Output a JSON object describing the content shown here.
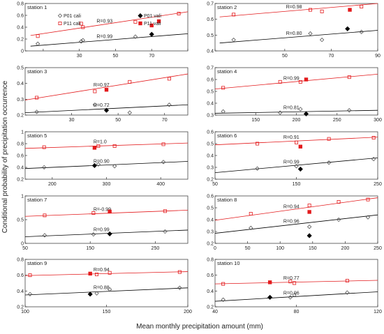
{
  "figure": {
    "ylabel": "Conditional probability of precipitation occurrence",
    "xlabel": "Mean monthly precipitation amount (mm)"
  },
  "colors": {
    "p01": "#000000",
    "p11": "#e31a1c",
    "axis": "#333333",
    "frame": "#444444"
  },
  "legend_labels": {
    "p01_cali": "P01 cali",
    "p11_cali": "P11 cali",
    "p01_vali": "P01 vali",
    "p11_vali": "P11 vali"
  },
  "chart_data": [
    {
      "type": "scatter",
      "title": "station 1",
      "xlim": [
        0,
        90
      ],
      "ylim": [
        0,
        0.8
      ],
      "xticks": [
        10,
        30,
        50,
        70,
        90
      ],
      "yticks": [
        0,
        0.2,
        0.4,
        0.6,
        0.8
      ],
      "xtick_labels": [
        "",
        "30",
        "50",
        "70",
        ""
      ],
      "series": [
        {
          "name": "P01 cali",
          "x": [
            7,
            31,
            32,
            61
          ],
          "y": [
            0.12,
            0.16,
            0.18,
            0.24
          ],
          "fit": [
            [
              3,
              0.08
            ],
            [
              90,
              0.29
            ]
          ],
          "R": "R=0.99"
        },
        {
          "name": "P11 cali",
          "x": [
            7,
            31,
            32,
            61,
            85
          ],
          "y": [
            0.25,
            0.46,
            0.4,
            0.49,
            0.63
          ],
          "fit": [
            [
              3,
              0.26
            ],
            [
              90,
              0.66
            ]
          ],
          "R": "R=0.93"
        },
        {
          "name": "P01 vali",
          "x": [
            70
          ],
          "y": [
            0.28
          ]
        },
        {
          "name": "P11 vali",
          "x": [
            70,
            74
          ],
          "y": [
            0.43,
            0.5
          ]
        }
      ]
    },
    {
      "type": "scatter",
      "title": "station 2",
      "xlim": [
        20,
        90
      ],
      "ylim": [
        0.4,
        0.7
      ],
      "xticks": [
        20,
        50,
        70,
        90
      ],
      "yticks": [
        0.4,
        0.5,
        0.6,
        0.7
      ],
      "xtick_labels": [
        "",
        "50",
        "70",
        "90"
      ],
      "series": [
        {
          "name": "P01 cali",
          "x": [
            28,
            61,
            66,
            83
          ],
          "y": [
            0.47,
            0.51,
            0.47,
            0.52
          ],
          "fit": [
            [
              22,
              0.45
            ],
            [
              90,
              0.53
            ]
          ],
          "R": "R=0.80"
        },
        {
          "name": "P11 cali",
          "x": [
            28,
            61,
            66,
            83
          ],
          "y": [
            0.63,
            0.66,
            0.65,
            0.68
          ],
          "fit": [
            [
              22,
              0.615
            ],
            [
              90,
              0.7
            ]
          ],
          "R": "R=0.98"
        },
        {
          "name": "P01 vali",
          "x": [
            77
          ],
          "y": [
            0.54
          ]
        },
        {
          "name": "P11 vali",
          "x": [
            78
          ],
          "y": [
            0.66
          ]
        }
      ]
    },
    {
      "type": "scatter",
      "title": "station 3",
      "xlim": [
        10,
        80
      ],
      "ylim": [
        0.2,
        0.5
      ],
      "xticks": [
        30,
        50,
        70
      ],
      "yticks": [
        0.2,
        0.3,
        0.4,
        0.5
      ],
      "xtick_labels": [
        "30",
        "50",
        "70"
      ],
      "series": [
        {
          "name": "P01 cali",
          "x": [
            15,
            40,
            55,
            72
          ],
          "y": [
            0.22,
            0.265,
            0.215,
            0.265
          ],
          "fit": [
            [
              10,
              0.215
            ],
            [
              80,
              0.265
            ]
          ],
          "R": "R=0.72"
        },
        {
          "name": "P11 cali",
          "x": [
            15,
            40,
            55,
            72
          ],
          "y": [
            0.31,
            0.35,
            0.41,
            0.43
          ],
          "fit": [
            [
              10,
              0.295
            ],
            [
              80,
              0.46
            ]
          ],
          "R": "R=0.97"
        },
        {
          "name": "P01 vali",
          "x": [
            45
          ],
          "y": [
            0.23
          ]
        },
        {
          "name": "P11 vali",
          "x": [
            45
          ],
          "y": [
            0.36
          ]
        }
      ]
    },
    {
      "type": "scatter",
      "title": "station 4",
      "xlim": [
        100,
        300
      ],
      "ylim": [
        0.3,
        0.7
      ],
      "xticks": [
        100,
        150,
        200,
        250,
        300
      ],
      "yticks": [
        0.3,
        0.4,
        0.5,
        0.6,
        0.7
      ],
      "xtick_labels": [
        "",
        "150",
        "200",
        "250",
        "300"
      ],
      "series": [
        {
          "name": "P01 cali",
          "x": [
            110,
            180,
            205,
            265
          ],
          "y": [
            0.33,
            0.32,
            0.35,
            0.34
          ],
          "fit": [
            [
              100,
              0.315
            ],
            [
              300,
              0.34
            ]
          ],
          "R": "R=0.81"
        },
        {
          "name": "P11 cali",
          "x": [
            110,
            180,
            205,
            265
          ],
          "y": [
            0.53,
            0.58,
            0.58,
            0.62
          ],
          "fit": [
            [
              100,
              0.52
            ],
            [
              300,
              0.645
            ]
          ],
          "R": "R=0.99"
        },
        {
          "name": "P01 vali",
          "x": [
            212
          ],
          "y": [
            0.31
          ]
        },
        {
          "name": "P11 vali",
          "x": [
            212
          ],
          "y": [
            0.6
          ]
        }
      ]
    },
    {
      "type": "scatter",
      "title": "station 5",
      "xlim": [
        150,
        450
      ],
      "ylim": [
        0.2,
        1.0
      ],
      "xticks": [
        200,
        300,
        400
      ],
      "yticks": [
        0.2,
        0.4,
        0.6,
        0.8,
        1.0
      ],
      "xtick_labels": [
        "200",
        "300",
        "400"
      ],
      "series": [
        {
          "name": "P01 cali",
          "x": [
            185,
            285,
            315,
            405
          ],
          "y": [
            0.4,
            0.45,
            0.42,
            0.49
          ],
          "fit": [
            [
              150,
              0.38
            ],
            [
              450,
              0.5
            ]
          ],
          "R": "R=0.90"
        },
        {
          "name": "P11 cali",
          "x": [
            185,
            285,
            315,
            405
          ],
          "y": [
            0.74,
            0.76,
            0.76,
            0.79
          ],
          "fit": [
            [
              150,
              0.72
            ],
            [
              450,
              0.81
            ]
          ],
          "R": "R=1.0"
        },
        {
          "name": "P01 vali",
          "x": [
            278
          ],
          "y": [
            0.43
          ]
        },
        {
          "name": "P11 vali",
          "x": [
            278
          ],
          "y": [
            0.73
          ]
        }
      ]
    },
    {
      "type": "scatter",
      "title": "station 6",
      "xlim": [
        50,
        250
      ],
      "ylim": [
        0.2,
        0.6
      ],
      "xticks": [
        50,
        150,
        250
      ],
      "yticks": [
        0.2,
        0.3,
        0.4,
        0.5,
        0.6
      ],
      "xtick_labels": [
        "50",
        "150",
        "250"
      ],
      "series": [
        {
          "name": "P01 cali",
          "x": [
            102,
            150,
            190,
            245
          ],
          "y": [
            0.29,
            0.31,
            0.34,
            0.37
          ],
          "fit": [
            [
              50,
              0.255
            ],
            [
              250,
              0.38
            ]
          ],
          "R": "R=0.99"
        },
        {
          "name": "P11 cali",
          "x": [
            102,
            150,
            190,
            245
          ],
          "y": [
            0.5,
            0.51,
            0.54,
            0.55
          ],
          "fit": [
            [
              50,
              0.49
            ],
            [
              250,
              0.555
            ]
          ],
          "R": "R=0.91"
        },
        {
          "name": "P01 vali",
          "x": [
            155
          ],
          "y": [
            0.285
          ]
        },
        {
          "name": "P11 vali",
          "x": [
            155
          ],
          "y": [
            0.475
          ]
        }
      ]
    },
    {
      "type": "scatter",
      "title": "station 7",
      "xlim": [
        50,
        300
      ],
      "ylim": [
        0.0,
        1.0
      ],
      "xticks": [
        50,
        150,
        250
      ],
      "yticks": [
        0,
        0.5,
        1.0
      ],
      "xtick_labels": [
        "50",
        "150",
        "250"
      ],
      "series": [
        {
          "name": "P01 cali",
          "x": [
            80,
            155,
            265
          ],
          "y": [
            0.17,
            0.19,
            0.25
          ],
          "fit": [
            [
              50,
              0.14
            ],
            [
              300,
              0.28
            ]
          ],
          "R": "R=0.99"
        },
        {
          "name": "P11 cali",
          "x": [
            80,
            155,
            265
          ],
          "y": [
            0.59,
            0.64,
            0.68
          ],
          "fit": [
            [
              50,
              0.57
            ],
            [
              300,
              0.7
            ]
          ],
          "R": "R=-0.99"
        },
        {
          "name": "P01 vali",
          "x": [
            180
          ],
          "y": [
            0.2
          ]
        },
        {
          "name": "P11 vali",
          "x": [
            180
          ],
          "y": [
            0.67
          ]
        }
      ]
    },
    {
      "type": "scatter",
      "title": "station 8",
      "xlim": [
        0,
        250
      ],
      "ylim": [
        0.2,
        0.6
      ],
      "xticks": [
        0,
        50,
        100,
        150,
        200,
        250
      ],
      "yticks": [
        0.2,
        0.3,
        0.4,
        0.5,
        0.6
      ],
      "xtick_labels": [
        "0",
        "50",
        "100",
        "150",
        "200",
        "250"
      ],
      "series": [
        {
          "name": "P01 cali",
          "x": [
            55,
            145,
            190,
            235
          ],
          "y": [
            0.33,
            0.34,
            0.4,
            0.42
          ],
          "fit": [
            [
              0,
              0.285
            ],
            [
              250,
              0.44
            ]
          ],
          "R": "R=0.96"
        },
        {
          "name": "P11 cali",
          "x": [
            55,
            145,
            190,
            235
          ],
          "y": [
            0.45,
            0.52,
            0.55,
            0.57
          ],
          "fit": [
            [
              0,
              0.395
            ],
            [
              250,
              0.585
            ]
          ],
          "R": "R=0.94"
        },
        {
          "name": "P01 vali",
          "x": [
            145
          ],
          "y": [
            0.265
          ]
        },
        {
          "name": "P11 vali",
          "x": [
            145
          ],
          "y": [
            0.465
          ]
        }
      ]
    },
    {
      "type": "scatter",
      "title": "station 9",
      "xlim": [
        100,
        200
      ],
      "ylim": [
        0.2,
        0.8
      ],
      "xticks": [
        100,
        150,
        200
      ],
      "yticks": [
        0.2,
        0.4,
        0.6,
        0.8
      ],
      "xtick_labels": [
        "100",
        "150",
        "200"
      ],
      "series": [
        {
          "name": "P01 cali",
          "x": [
            103,
            144,
            152,
            195
          ],
          "y": [
            0.36,
            0.37,
            0.42,
            0.44
          ],
          "fit": [
            [
              100,
              0.35
            ],
            [
              200,
              0.44
            ]
          ],
          "R": "R=0.88"
        },
        {
          "name": "P11 cali",
          "x": [
            103,
            144,
            152,
            195
          ],
          "y": [
            0.6,
            0.61,
            0.63,
            0.64
          ],
          "fit": [
            [
              100,
              0.595
            ],
            [
              200,
              0.645
            ]
          ],
          "R": "R=0.94"
        },
        {
          "name": "P01 vali",
          "x": [
            140
          ],
          "y": [
            0.36
          ]
        },
        {
          "name": "P11 vali",
          "x": [
            140
          ],
          "y": [
            0.62
          ]
        }
      ]
    },
    {
      "type": "scatter",
      "title": "station 10",
      "xlim": [
        40,
        120
      ],
      "ylim": [
        0.2,
        0.8
      ],
      "xticks": [
        40,
        80,
        120
      ],
      "yticks": [
        0.2,
        0.4,
        0.6,
        0.8
      ],
      "xtick_labels": [
        "40",
        "80",
        "120"
      ],
      "series": [
        {
          "name": "P01 cali",
          "x": [
            44,
            77,
            79,
            105
          ],
          "y": [
            0.29,
            0.32,
            0.35,
            0.38
          ],
          "fit": [
            [
              40,
              0.27
            ],
            [
              120,
              0.39
            ]
          ],
          "R": "R=0.96"
        },
        {
          "name": "P11 cali",
          "x": [
            44,
            77,
            79,
            105
          ],
          "y": [
            0.49,
            0.52,
            0.5,
            0.53
          ],
          "fit": [
            [
              40,
              0.49
            ],
            [
              120,
              0.535
            ]
          ],
          "R": "R=0.77"
        },
        {
          "name": "P01 vali",
          "x": [
            67
          ],
          "y": [
            0.32
          ]
        },
        {
          "name": "P11 vali",
          "x": [
            67
          ],
          "y": [
            0.51
          ]
        }
      ]
    }
  ]
}
